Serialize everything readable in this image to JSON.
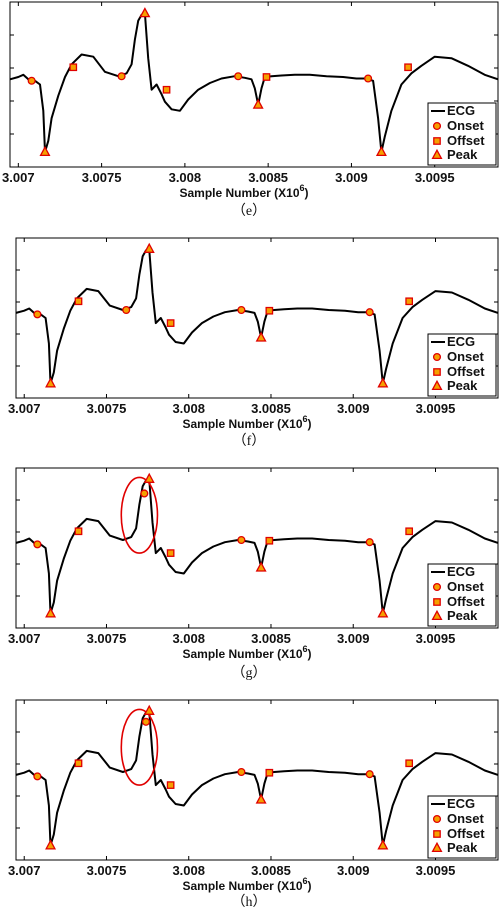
{
  "chart_data": [
    {
      "panel": "e",
      "caption": "（e）",
      "type": "line",
      "xlabel": "Sample Number (X10",
      "xlabel_exp": "6",
      "xlabel_close": ")",
      "xlim": [
        3.00695,
        3.00988
      ],
      "ylim": [
        -1.15,
        1.05
      ],
      "x_ticks": [
        3.007,
        3.0075,
        3.008,
        3.0085,
        3.009,
        3.0095
      ],
      "x_tick_labels": [
        "3.007",
        "3.0075",
        "3.008",
        "3.0085",
        "3.009",
        "3.0095"
      ],
      "legend": {
        "placement": "bottom-right",
        "entries": [
          "ECG",
          "Onset",
          "Offset",
          "Peak"
        ]
      },
      "series": [
        {
          "name": "ECG",
          "x": [
            3.00695,
            3.007,
            3.00703,
            3.00706,
            3.0071,
            3.00713,
            3.00715,
            3.00716,
            3.00718,
            3.0072,
            3.00724,
            3.00728,
            3.00732,
            3.00738,
            3.00745,
            3.00752,
            3.0076,
            3.00765,
            3.00768,
            3.0077,
            3.00772,
            3.00774,
            3.00776,
            3.00778,
            3.0078,
            3.00783,
            3.00786,
            3.00788,
            3.00792,
            3.00797,
            3.00802,
            3.00808,
            3.00815,
            3.00822,
            3.0083,
            3.00836,
            3.0084,
            3.00842,
            3.00844,
            3.00846,
            3.00848,
            3.00852,
            3.00858,
            3.00866,
            3.00875,
            3.00885,
            3.00895,
            3.00903,
            3.00909,
            3.00913,
            3.00916,
            3.00918,
            3.0092,
            3.00924,
            3.0093,
            3.00936,
            3.00942,
            3.0095,
            3.0096,
            3.0097,
            3.0098,
            3.00988
          ],
          "y": [
            0.02,
            0.05,
            0.08,
            0.02,
            0.0,
            -0.05,
            -0.4,
            -0.95,
            -0.8,
            -0.5,
            -0.2,
            0.05,
            0.22,
            0.35,
            0.32,
            0.12,
            0.06,
            0.1,
            0.22,
            0.55,
            0.8,
            0.88,
            0.9,
            0.3,
            -0.12,
            -0.05,
            -0.18,
            -0.28,
            -0.38,
            -0.4,
            -0.25,
            -0.12,
            -0.03,
            0.03,
            0.06,
            0.04,
            0.02,
            -0.1,
            -0.32,
            -0.1,
            0.05,
            0.06,
            0.07,
            0.08,
            0.08,
            0.06,
            0.05,
            0.03,
            0.03,
            0.0,
            -0.5,
            -0.95,
            -0.75,
            -0.4,
            -0.05,
            0.1,
            0.2,
            0.32,
            0.3,
            0.2,
            0.08,
            0.02
          ]
        }
      ],
      "onset": {
        "x": [
          3.00708,
          3.00762,
          3.00832,
          3.0091
        ],
        "y": [
          0.0,
          0.06,
          0.06,
          0.03
        ]
      },
      "offset": {
        "x": [
          3.00733,
          3.00789,
          3.00849,
          3.00934
        ],
        "y": [
          0.18,
          -0.12,
          0.05,
          0.18
        ]
      },
      "peak": {
        "x": [
          3.00716,
          3.00776,
          3.00844,
          3.00918
        ],
        "y": [
          -0.95,
          0.9,
          -0.32,
          -0.95
        ]
      },
      "highlight": null
    },
    {
      "panel": "f",
      "caption": "（f）",
      "type": "line",
      "xlabel": "Sample Number (X10",
      "xlabel_exp": "6",
      "xlabel_close": ")",
      "xlim": [
        3.00695,
        3.00988
      ],
      "ylim": [
        -1.15,
        1.05
      ],
      "x_ticks": [
        3.007,
        3.0075,
        3.008,
        3.0085,
        3.009,
        3.0095
      ],
      "x_tick_labels": [
        "3.007",
        "3.0075",
        "3.008",
        "3.0085",
        "3.009",
        "3.0095"
      ],
      "legend": {
        "placement": "bottom-right",
        "entries": [
          "ECG",
          "Onset",
          "Offset",
          "Peak"
        ]
      },
      "series": [
        {
          "name": "ECG",
          "x": [
            3.00695,
            3.007,
            3.00703,
            3.00706,
            3.0071,
            3.00713,
            3.00715,
            3.00716,
            3.00718,
            3.0072,
            3.00724,
            3.00728,
            3.00732,
            3.00738,
            3.00745,
            3.00752,
            3.0076,
            3.00765,
            3.00768,
            3.0077,
            3.00772,
            3.00774,
            3.00776,
            3.00778,
            3.0078,
            3.00783,
            3.00786,
            3.00788,
            3.00792,
            3.00797,
            3.00802,
            3.00808,
            3.00815,
            3.00822,
            3.0083,
            3.00836,
            3.0084,
            3.00842,
            3.00844,
            3.00846,
            3.00848,
            3.00852,
            3.00858,
            3.00866,
            3.00875,
            3.00885,
            3.00895,
            3.00903,
            3.00909,
            3.00913,
            3.00916,
            3.00918,
            3.0092,
            3.00924,
            3.0093,
            3.00936,
            3.00942,
            3.0095,
            3.0096,
            3.0097,
            3.0098,
            3.00988
          ],
          "y": [
            0.02,
            0.05,
            0.08,
            0.02,
            0.0,
            -0.05,
            -0.4,
            -0.95,
            -0.8,
            -0.5,
            -0.2,
            0.05,
            0.22,
            0.35,
            0.32,
            0.12,
            0.06,
            0.1,
            0.22,
            0.55,
            0.8,
            0.88,
            0.9,
            0.3,
            -0.12,
            -0.05,
            -0.18,
            -0.28,
            -0.38,
            -0.4,
            -0.25,
            -0.12,
            -0.03,
            0.03,
            0.06,
            0.04,
            0.02,
            -0.1,
            -0.32,
            -0.1,
            0.05,
            0.06,
            0.07,
            0.08,
            0.08,
            0.06,
            0.05,
            0.03,
            0.03,
            0.0,
            -0.5,
            -0.95,
            -0.75,
            -0.4,
            -0.05,
            0.1,
            0.2,
            0.32,
            0.3,
            0.2,
            0.08,
            0.02
          ]
        }
      ],
      "onset": {
        "x": [
          3.00708,
          3.00762,
          3.00832,
          3.0091
        ],
        "y": [
          0.0,
          0.06,
          0.06,
          0.03
        ]
      },
      "offset": {
        "x": [
          3.00733,
          3.00789,
          3.00849,
          3.00934
        ],
        "y": [
          0.18,
          -0.12,
          0.05,
          0.18
        ]
      },
      "peak": {
        "x": [
          3.00716,
          3.00776,
          3.00844,
          3.00918
        ],
        "y": [
          -0.95,
          0.9,
          -0.32,
          -0.95
        ]
      },
      "highlight": null
    },
    {
      "panel": "g",
      "caption": "（g）",
      "type": "line",
      "xlabel": "Sample Number (X10",
      "xlabel_exp": "6",
      "xlabel_close": ")",
      "xlim": [
        3.00695,
        3.00988
      ],
      "ylim": [
        -1.15,
        1.05
      ],
      "x_ticks": [
        3.007,
        3.0075,
        3.008,
        3.0085,
        3.009,
        3.0095
      ],
      "x_tick_labels": [
        "3.007",
        "3.0075",
        "3.008",
        "3.0085",
        "3.009",
        "3.0095"
      ],
      "legend": {
        "placement": "bottom-right",
        "entries": [
          "ECG",
          "Onset",
          "Offset",
          "Peak"
        ]
      },
      "series": [
        {
          "name": "ECG",
          "x": [
            3.00695,
            3.007,
            3.00703,
            3.00706,
            3.0071,
            3.00713,
            3.00715,
            3.00716,
            3.00718,
            3.0072,
            3.00724,
            3.00728,
            3.00732,
            3.00738,
            3.00745,
            3.00752,
            3.0076,
            3.00765,
            3.00768,
            3.0077,
            3.00772,
            3.00774,
            3.00776,
            3.00778,
            3.0078,
            3.00783,
            3.00786,
            3.00788,
            3.00792,
            3.00797,
            3.00802,
            3.00808,
            3.00815,
            3.00822,
            3.0083,
            3.00836,
            3.0084,
            3.00842,
            3.00844,
            3.00846,
            3.00848,
            3.00852,
            3.00858,
            3.00866,
            3.00875,
            3.00885,
            3.00895,
            3.00903,
            3.00909,
            3.00913,
            3.00916,
            3.00918,
            3.0092,
            3.00924,
            3.0093,
            3.00936,
            3.00942,
            3.0095,
            3.0096,
            3.0097,
            3.0098,
            3.00988
          ],
          "y": [
            0.02,
            0.05,
            0.08,
            0.02,
            0.0,
            -0.05,
            -0.4,
            -0.95,
            -0.8,
            -0.5,
            -0.2,
            0.05,
            0.22,
            0.35,
            0.32,
            0.12,
            0.06,
            0.1,
            0.22,
            0.55,
            0.8,
            0.88,
            0.9,
            0.3,
            -0.12,
            -0.05,
            -0.18,
            -0.28,
            -0.38,
            -0.4,
            -0.25,
            -0.12,
            -0.03,
            0.03,
            0.06,
            0.04,
            0.02,
            -0.1,
            -0.32,
            -0.1,
            0.05,
            0.06,
            0.07,
            0.08,
            0.08,
            0.06,
            0.05,
            0.03,
            0.03,
            0.0,
            -0.5,
            -0.95,
            -0.75,
            -0.4,
            -0.05,
            0.1,
            0.2,
            0.32,
            0.3,
            0.2,
            0.08,
            0.02
          ]
        }
      ],
      "onset": {
        "x": [
          3.00708,
          3.00773,
          3.00832,
          3.0091
        ],
        "y": [
          0.0,
          0.7,
          0.06,
          0.03
        ]
      },
      "offset": {
        "x": [
          3.00733,
          3.00789,
          3.00849,
          3.00934
        ],
        "y": [
          0.18,
          -0.12,
          0.05,
          0.18
        ]
      },
      "peak": {
        "x": [
          3.00716,
          3.00776,
          3.00844,
          3.00918
        ],
        "y": [
          -0.95,
          0.9,
          -0.32,
          -0.95
        ]
      },
      "highlight": {
        "cx": 3.0077,
        "cy": 0.4,
        "rx": 0.00011,
        "ry": 0.52
      }
    },
    {
      "panel": "h",
      "caption": "（h）",
      "type": "line",
      "xlabel": "Sample Number (X10",
      "xlabel_exp": "6",
      "xlabel_close": ")",
      "xlim": [
        3.00695,
        3.00988
      ],
      "ylim": [
        -1.15,
        1.05
      ],
      "x_ticks": [
        3.007,
        3.0075,
        3.008,
        3.0085,
        3.009,
        3.0095
      ],
      "x_tick_labels": [
        "3.007",
        "3.0075",
        "3.008",
        "3.0085",
        "3.009",
        "3.0095"
      ],
      "legend": {
        "placement": "bottom-right",
        "entries": [
          "ECG",
          "Onset",
          "Offset",
          "Peak"
        ]
      },
      "series": [
        {
          "name": "ECG",
          "x": [
            3.00695,
            3.007,
            3.00703,
            3.00706,
            3.0071,
            3.00713,
            3.00715,
            3.00716,
            3.00718,
            3.0072,
            3.00724,
            3.00728,
            3.00732,
            3.00738,
            3.00745,
            3.00752,
            3.0076,
            3.00765,
            3.00768,
            3.0077,
            3.00772,
            3.00774,
            3.00776,
            3.00778,
            3.0078,
            3.00783,
            3.00786,
            3.00788,
            3.00792,
            3.00797,
            3.00802,
            3.00808,
            3.00815,
            3.00822,
            3.0083,
            3.00836,
            3.0084,
            3.00842,
            3.00844,
            3.00846,
            3.00848,
            3.00852,
            3.00858,
            3.00866,
            3.00875,
            3.00885,
            3.00895,
            3.00903,
            3.00909,
            3.00913,
            3.00916,
            3.00918,
            3.0092,
            3.00924,
            3.0093,
            3.00936,
            3.00942,
            3.0095,
            3.0096,
            3.0097,
            3.0098,
            3.00988
          ],
          "y": [
            0.02,
            0.05,
            0.08,
            0.02,
            0.0,
            -0.05,
            -0.4,
            -0.95,
            -0.8,
            -0.5,
            -0.2,
            0.05,
            0.22,
            0.35,
            0.32,
            0.12,
            0.06,
            0.1,
            0.22,
            0.55,
            0.8,
            0.88,
            0.9,
            0.3,
            -0.12,
            -0.05,
            -0.18,
            -0.28,
            -0.38,
            -0.4,
            -0.25,
            -0.12,
            -0.03,
            0.03,
            0.06,
            0.04,
            0.02,
            -0.1,
            -0.32,
            -0.1,
            0.05,
            0.06,
            0.07,
            0.08,
            0.08,
            0.06,
            0.05,
            0.03,
            0.03,
            0.0,
            -0.5,
            -0.95,
            -0.75,
            -0.4,
            -0.05,
            0.1,
            0.2,
            0.32,
            0.3,
            0.2,
            0.08,
            0.02
          ]
        }
      ],
      "onset": {
        "x": [
          3.00708,
          3.00774,
          3.00832,
          3.0091
        ],
        "y": [
          0.0,
          0.75,
          0.06,
          0.03
        ]
      },
      "offset": {
        "x": [
          3.00733,
          3.00789,
          3.00849,
          3.00934
        ],
        "y": [
          0.18,
          -0.12,
          0.05,
          0.18
        ]
      },
      "peak": {
        "x": [
          3.00716,
          3.00776,
          3.00844,
          3.00918
        ],
        "y": [
          -0.95,
          0.9,
          -0.32,
          -0.95
        ]
      },
      "highlight": {
        "cx": 3.0077,
        "cy": 0.4,
        "rx": 0.00011,
        "ry": 0.52
      }
    }
  ],
  "colors": {
    "line": "#000000",
    "marker_fill": "#f5a000",
    "marker_stroke": "#e00000",
    "highlight": "#e00000"
  }
}
